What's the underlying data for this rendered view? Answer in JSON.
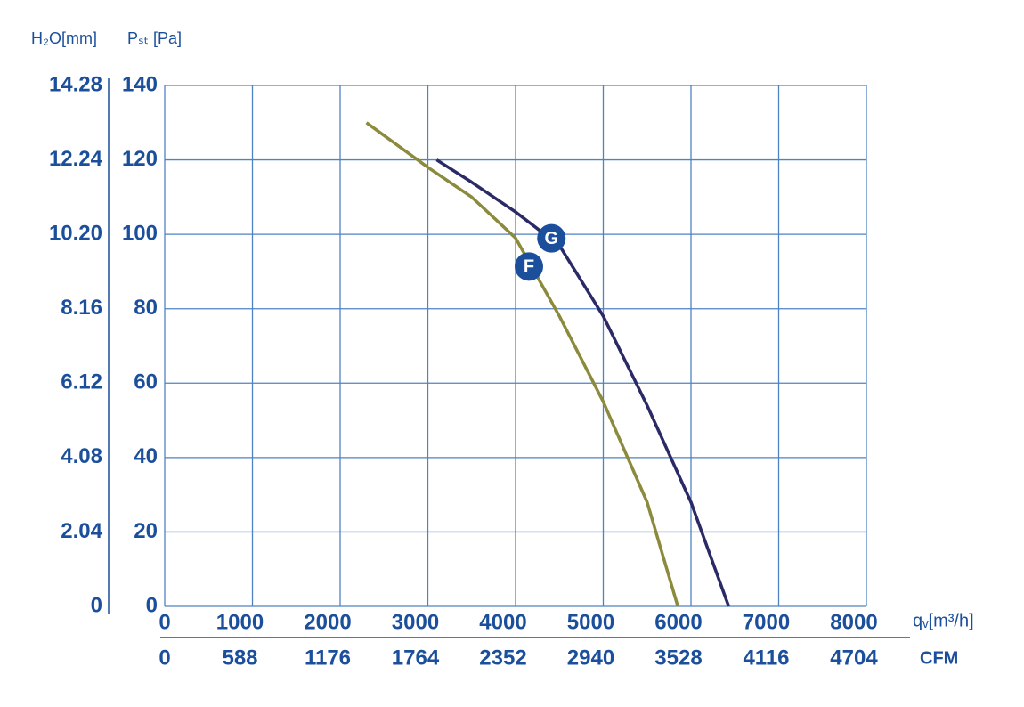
{
  "chart_data": {
    "type": "line",
    "y_label": "Pₛₜ [Pa]",
    "y2_label": "H₂O[mm]",
    "x_label": "qᵥ[m³/h]",
    "x2_label": "CFM",
    "xlim": [
      0,
      8000
    ],
    "xticks": [
      0,
      1000,
      2000,
      3000,
      4000,
      5000,
      6000,
      7000,
      8000
    ],
    "x2lim": [
      0,
      4704
    ],
    "x2ticks": [
      0,
      588,
      1176,
      1764,
      2352,
      2940,
      3528,
      4116,
      4704
    ],
    "ylim": [
      0,
      140
    ],
    "yticks": [
      0,
      20,
      40,
      60,
      80,
      100,
      120,
      140
    ],
    "y2lim": [
      0,
      14.28
    ],
    "y2ticks": [
      0,
      2.04,
      4.08,
      6.12,
      8.16,
      {
        "value": 10.2,
        "label": "10.20"
      },
      12.24,
      14.28
    ],
    "grid": true,
    "series": [
      {
        "name": "F",
        "color": "#8c8a3c",
        "x": [
          2300,
          3000,
          3500,
          4000,
          4500,
          5000,
          5500,
          5850
        ],
        "values": [
          130,
          118,
          110,
          99,
          78,
          55,
          28,
          0
        ]
      },
      {
        "name": "G",
        "color": "#2b2a66",
        "x": [
          3100,
          3500,
          4000,
          4500,
          5000,
          5500,
          6000,
          6430
        ],
        "values": [
          120,
          114,
          106,
          97,
          78,
          54,
          28,
          0
        ]
      }
    ]
  }
}
